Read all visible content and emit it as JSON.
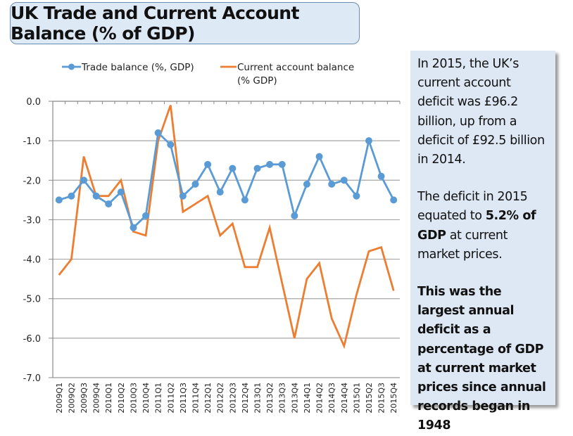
{
  "header": {
    "title": "UK Trade and Current Account Balance (% of GDP)"
  },
  "info_panel": {
    "para1": "In 2015, the UK’s current account deficit was £96.2 billion, up from a deficit of £92.5 billion in 2014.",
    "para2_pre": "The deficit in 2015 equated to ",
    "para2_bold": "5.2% of GDP",
    "para2_post": " at current market prices.",
    "para3": "This was the largest annual deficit as a percentage of GDP at current market prices since annual records began in 1948"
  },
  "chart_data": {
    "type": "line",
    "title": "UK Trade and Current Account Balance (% of GDP)",
    "xlabel": "",
    "ylabel": "",
    "ylim": [
      -7.0,
      0.0
    ],
    "yticks": [
      "0.0",
      "-1.0",
      "-2.0",
      "-3.0",
      "-4.0",
      "-5.0",
      "-6.0",
      "-7.0"
    ],
    "grid": true,
    "legend_position": "top",
    "categories": [
      "2009Q1",
      "2009Q2",
      "2009Q3",
      "2009Q4",
      "2010Q1",
      "2010Q2",
      "2010Q3",
      "2010Q4",
      "2011Q1",
      "2011Q2",
      "2011Q3",
      "2011Q4",
      "2012Q1",
      "2012Q2",
      "2012Q3",
      "2012Q4",
      "2013Q1",
      "2013Q2",
      "2013Q3",
      "2013Q4",
      "2014Q1",
      "2014Q2",
      "2014Q3",
      "2014Q4",
      "2015Q1",
      "2015Q2",
      "2015Q3",
      "2015Q4"
    ],
    "series": [
      {
        "name": "Trade balance (%, GDP)",
        "color": "#5b9bd5",
        "markers": true,
        "values": [
          -2.5,
          -2.4,
          -2.0,
          -2.4,
          -2.6,
          -2.3,
          -3.2,
          -2.9,
          -0.8,
          -1.1,
          -2.4,
          -2.1,
          -1.6,
          -2.3,
          -1.7,
          -2.5,
          -1.7,
          -1.6,
          -1.6,
          -2.9,
          -2.1,
          -1.4,
          -2.1,
          -2.0,
          -2.4,
          -1.0,
          -1.9,
          -2.5
        ]
      },
      {
        "name": "Current account balance (% GDP)",
        "legend_lines": [
          "Current account balance",
          "(% GDP)"
        ],
        "color": "#ed7d31",
        "markers": false,
        "values": [
          -4.4,
          -4.0,
          -1.4,
          -2.4,
          -2.4,
          -2.0,
          -3.3,
          -3.4,
          -1.0,
          -0.1,
          -2.8,
          -2.6,
          -2.4,
          -3.4,
          -3.1,
          -4.2,
          -4.2,
          -3.2,
          -4.6,
          -6.0,
          -4.5,
          -4.1,
          -5.5,
          -6.2,
          -4.9,
          -3.8,
          -3.7,
          -4.8
        ]
      }
    ]
  }
}
